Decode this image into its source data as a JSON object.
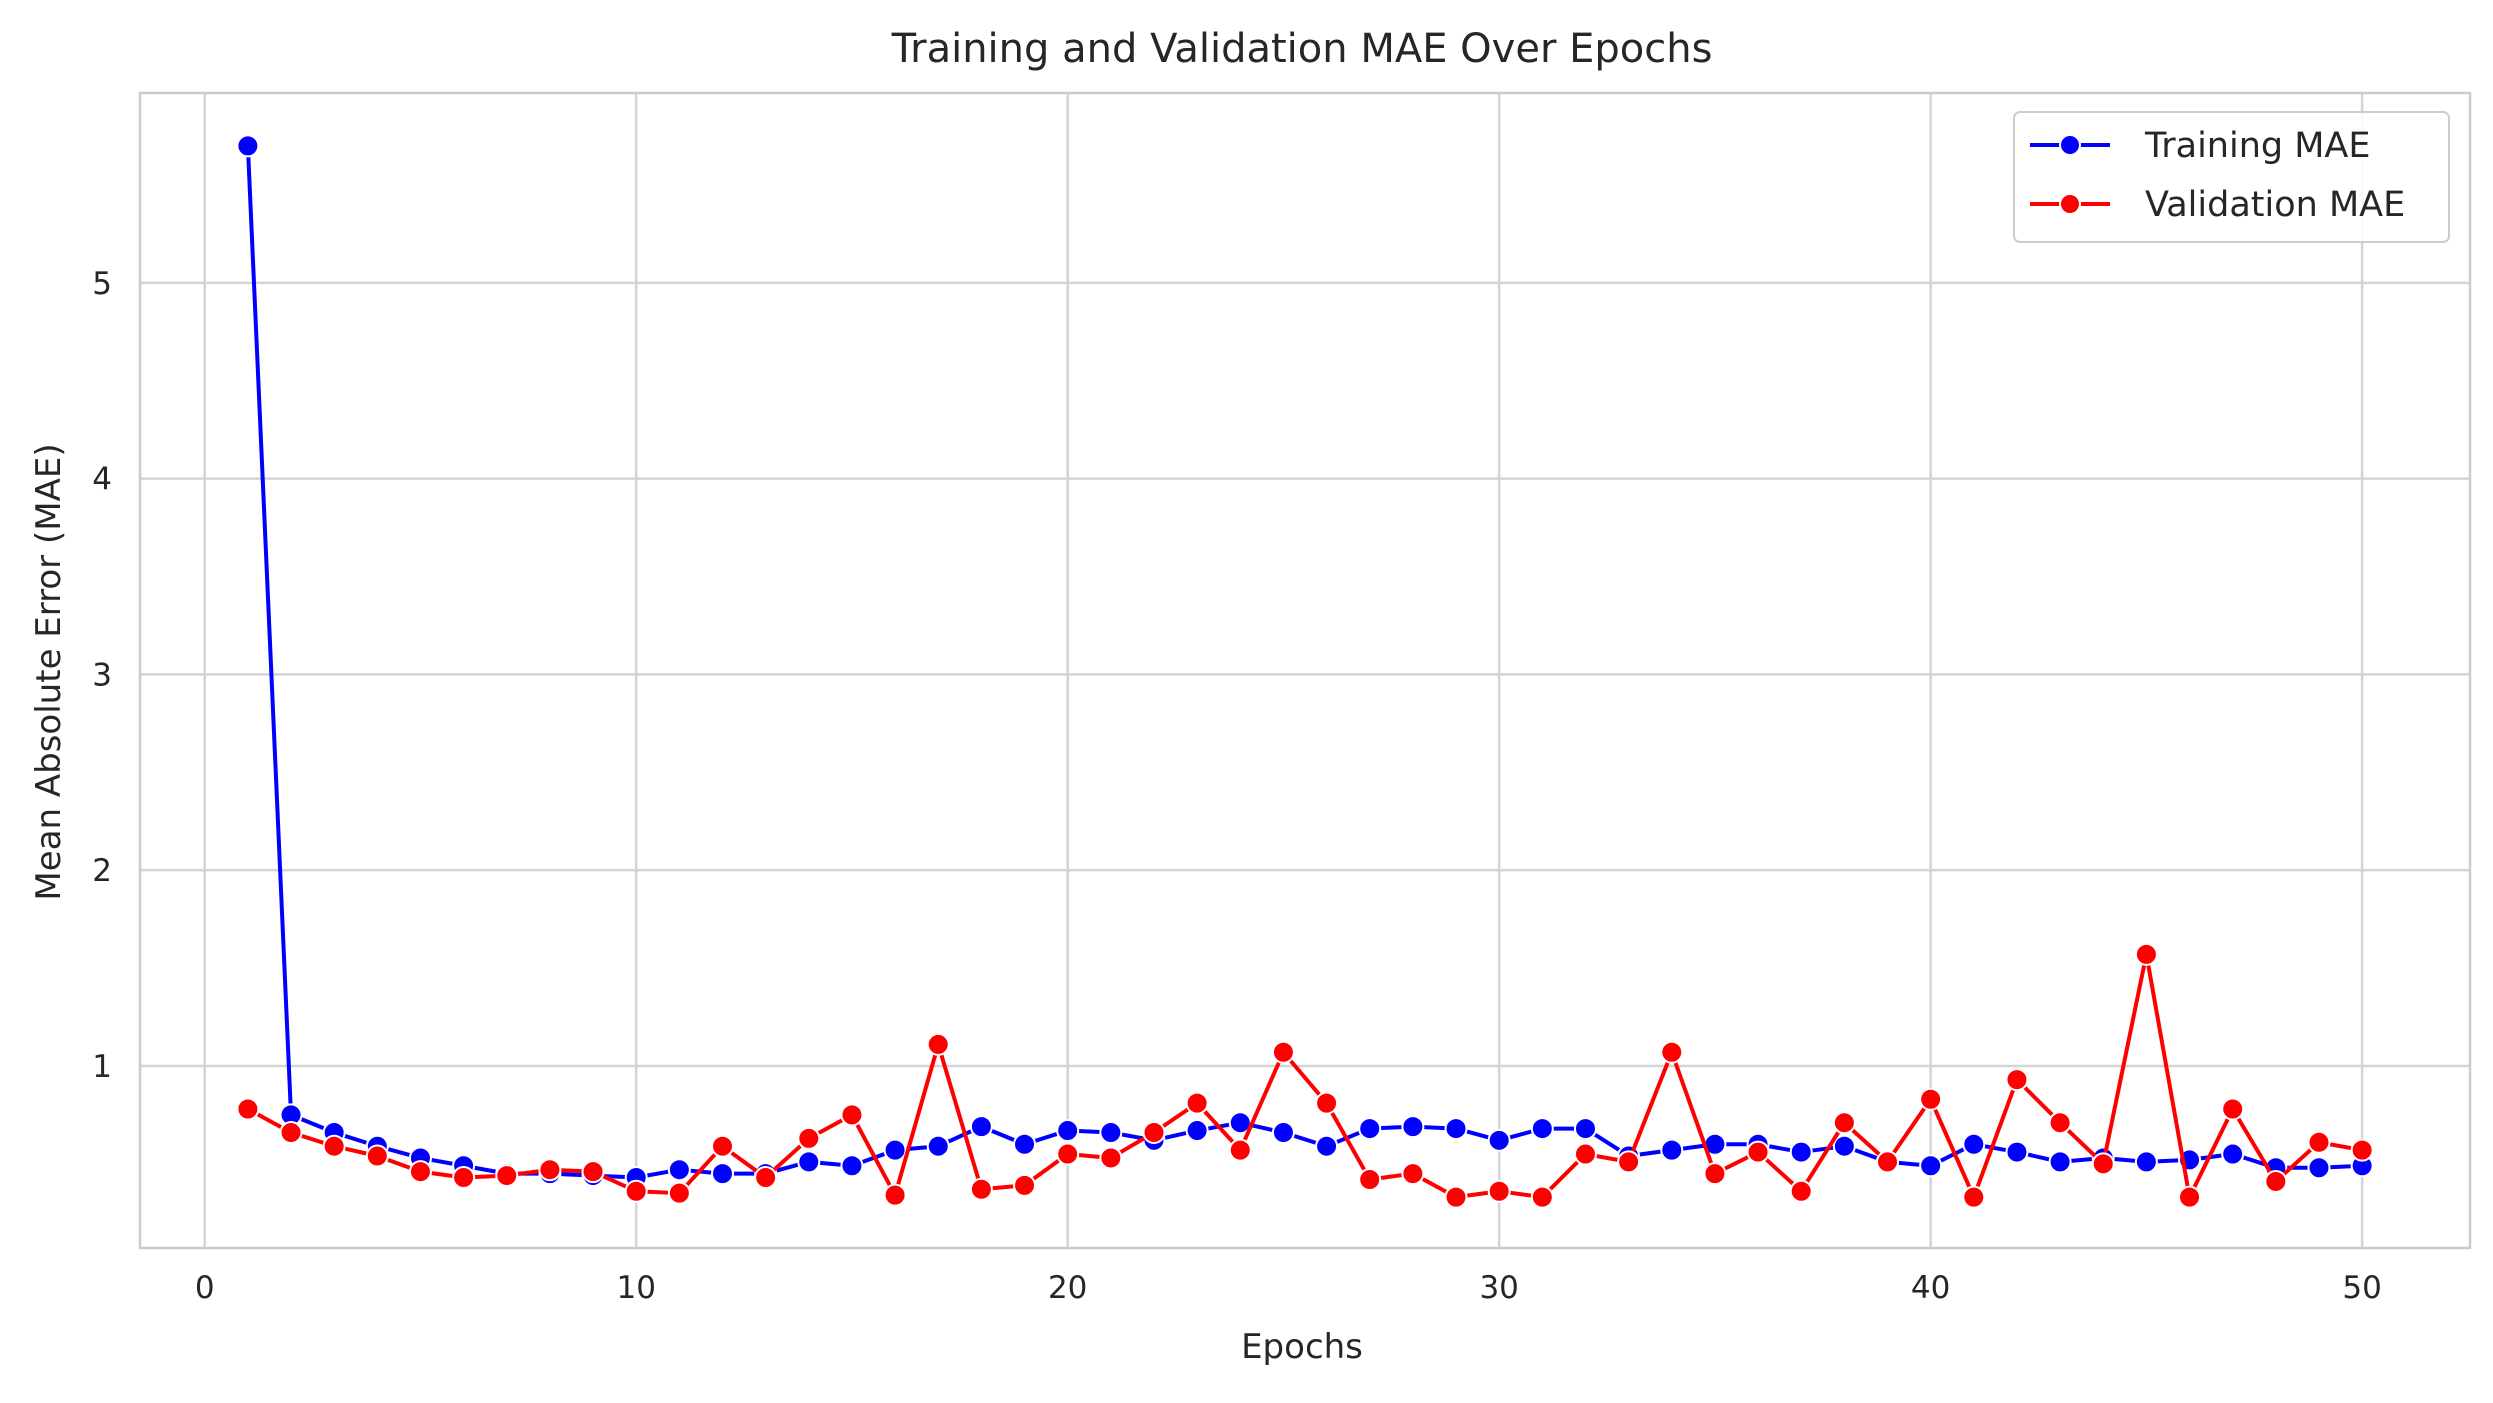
{
  "chart_data": {
    "type": "line",
    "title": "Training and Validation MAE Over Epochs",
    "xlabel": "Epochs",
    "ylabel": "Mean Absolute Error (MAE)",
    "xlim": [
      -1.5,
      52.5
    ],
    "ylim": [
      0.07,
      5.97
    ],
    "xticks": [
      0,
      10,
      20,
      30,
      40,
      50
    ],
    "yticks": [
      1,
      2,
      3,
      4,
      5
    ],
    "grid": true,
    "legend_position": "top-right",
    "x": [
      1,
      2,
      3,
      4,
      5,
      6,
      7,
      8,
      9,
      10,
      11,
      12,
      13,
      14,
      15,
      16,
      17,
      18,
      19,
      20,
      21,
      22,
      23,
      24,
      25,
      26,
      27,
      28,
      29,
      30,
      31,
      32,
      33,
      34,
      35,
      36,
      37,
      38,
      39,
      40,
      41,
      42,
      43,
      44,
      45,
      46,
      47,
      48,
      49,
      50
    ],
    "series": [
      {
        "name": "Training MAE",
        "color": "#0000ff",
        "values": [
          5.7,
          0.75,
          0.66,
          0.59,
          0.53,
          0.49,
          0.45,
          0.45,
          0.44,
          0.43,
          0.47,
          0.45,
          0.45,
          0.51,
          0.49,
          0.57,
          0.59,
          0.69,
          0.6,
          0.67,
          0.66,
          0.62,
          0.67,
          0.71,
          0.66,
          0.59,
          0.68,
          0.69,
          0.68,
          0.62,
          0.68,
          0.68,
          0.54,
          0.57,
          0.6,
          0.6,
          0.56,
          0.59,
          0.51,
          0.49,
          0.6,
          0.56,
          0.51,
          0.53,
          0.51,
          0.52,
          0.55,
          0.48,
          0.48,
          0.49
        ]
      },
      {
        "name": "Validation MAE",
        "color": "#ff0000",
        "values": [
          0.78,
          0.66,
          0.59,
          0.54,
          0.46,
          0.43,
          0.44,
          0.47,
          0.46,
          0.36,
          0.35,
          0.59,
          0.43,
          0.63,
          0.75,
          0.34,
          1.11,
          0.37,
          0.39,
          0.55,
          0.53,
          0.66,
          0.81,
          0.57,
          1.07,
          0.81,
          0.42,
          0.45,
          0.33,
          0.36,
          0.33,
          0.55,
          0.51,
          1.07,
          0.45,
          0.56,
          0.36,
          0.71,
          0.51,
          0.83,
          0.33,
          0.93,
          0.71,
          0.5,
          1.57,
          0.33,
          0.78,
          0.41,
          0.61,
          0.57
        ]
      }
    ]
  }
}
